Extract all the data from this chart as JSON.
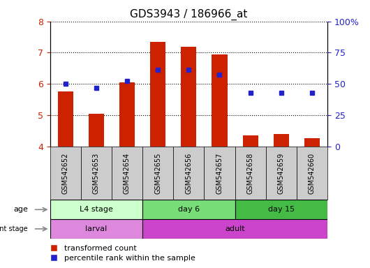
{
  "title": "GDS3943 / 186966_at",
  "samples": [
    "GSM542652",
    "GSM542653",
    "GSM542654",
    "GSM542655",
    "GSM542656",
    "GSM542657",
    "GSM542658",
    "GSM542659",
    "GSM542660"
  ],
  "transformed_count": [
    5.75,
    5.05,
    6.05,
    7.35,
    7.2,
    6.95,
    4.35,
    4.4,
    4.25
  ],
  "percentile_rank": [
    6.0,
    5.88,
    6.1,
    6.45,
    6.45,
    6.3,
    5.72,
    5.72,
    5.72
  ],
  "ylim_left": [
    4,
    8
  ],
  "ylim_right": [
    0,
    100
  ],
  "yticks_left": [
    4,
    5,
    6,
    7,
    8
  ],
  "yticks_right": [
    0,
    25,
    50,
    75,
    100
  ],
  "ytick_right_labels": [
    "0",
    "25",
    "50",
    "75",
    "100%"
  ],
  "bar_color": "#cc2200",
  "dot_color": "#2222cc",
  "bar_bottom": 4.0,
  "bar_width": 0.5,
  "age_groups": [
    {
      "label": "L4 stage",
      "start": 0,
      "end": 3,
      "color": "#ccffcc"
    },
    {
      "label": "day 6",
      "start": 3,
      "end": 6,
      "color": "#77dd77"
    },
    {
      "label": "day 15",
      "start": 6,
      "end": 9,
      "color": "#44bb44"
    }
  ],
  "dev_groups": [
    {
      "label": "larval",
      "start": 0,
      "end": 3,
      "color": "#dd88dd"
    },
    {
      "label": "adult",
      "start": 3,
      "end": 9,
      "color": "#cc44cc"
    }
  ],
  "sample_box_color": "#cccccc",
  "legend_bar_color": "#cc2200",
  "legend_dot_color": "#2222cc",
  "legend_bar_label": "transformed count",
  "legend_dot_label": "percentile rank within the sample",
  "title_fontsize": 11,
  "axis_fontsize": 9,
  "label_fontsize": 8,
  "legend_fontsize": 8
}
